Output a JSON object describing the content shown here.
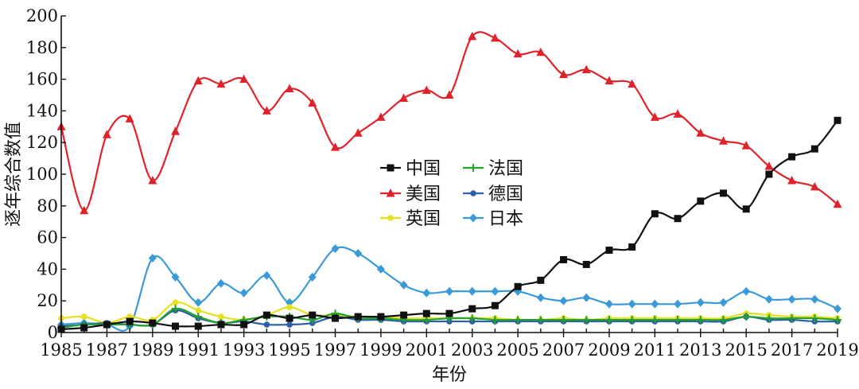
{
  "chart_data": {
    "type": "line",
    "title": "",
    "xlabel": "年份",
    "ylabel": "逐年综合数值",
    "ylim": [
      0,
      200
    ],
    "xlim": [
      1985,
      2019
    ],
    "x_ticks": [
      "1985",
      "1987",
      "1989",
      "1991",
      "1993",
      "1995",
      "1997",
      "1999",
      "2001",
      "2003",
      "2005",
      "2007",
      "2009",
      "2011",
      "2013",
      "2015",
      "2017",
      "2019"
    ],
    "y_ticks": [
      "0",
      "20",
      "40",
      "60",
      "80",
      "100",
      "120",
      "140",
      "160",
      "180",
      "200"
    ],
    "grid": false,
    "legend_placement": "center",
    "x": [
      1985,
      1986,
      1987,
      1988,
      1989,
      1990,
      1991,
      1992,
      1993,
      1994,
      1995,
      1996,
      1997,
      1998,
      1999,
      2000,
      2001,
      2002,
      2003,
      2004,
      2005,
      2006,
      2007,
      2008,
      2009,
      2010,
      2011,
      2012,
      2013,
      2014,
      2015,
      2016,
      2017,
      2018,
      2019
    ],
    "series": [
      {
        "name": "中国",
        "color": "#111111",
        "marker": "square",
        "values": [
          2,
          3,
          5,
          7,
          6,
          4,
          4,
          5,
          5,
          11,
          9,
          11,
          9,
          10,
          10,
          11,
          12,
          12,
          15,
          17,
          29,
          33,
          46,
          43,
          52,
          54,
          75,
          72,
          83,
          88,
          78,
          100,
          111,
          116,
          134
        ]
      },
      {
        "name": "法国",
        "color": "#22a32a",
        "marker": "plus",
        "values": [
          3,
          5,
          5,
          5,
          5,
          15,
          10,
          6,
          8,
          10,
          10,
          8,
          12,
          9,
          9,
          8,
          8,
          9,
          9,
          8,
          8,
          8,
          8,
          8,
          8,
          8,
          8,
          8,
          8,
          8,
          10,
          9,
          9,
          9,
          8
        ]
      },
      {
        "name": "美国",
        "color": "#e0222b",
        "marker": "triangle",
        "values": [
          130,
          77,
          125,
          135,
          96,
          127,
          159,
          157,
          160,
          140,
          154,
          145,
          117,
          126,
          136,
          148,
          153,
          150,
          187,
          186,
          176,
          177,
          163,
          166,
          159,
          157,
          136,
          138,
          126,
          121,
          118,
          105,
          96,
          92,
          81
        ]
      },
      {
        "name": "德国",
        "color": "#2d5fa8",
        "marker": "dot",
        "values": [
          4,
          5,
          6,
          5,
          5,
          14,
          9,
          6,
          7,
          5,
          5,
          6,
          10,
          8,
          8,
          7,
          7,
          7,
          7,
          7,
          7,
          7,
          7,
          7,
          7,
          7,
          7,
          7,
          7,
          7,
          10,
          8,
          8,
          7,
          7
        ]
      },
      {
        "name": "英国",
        "color": "#e6e01e",
        "marker": "dot",
        "values": [
          9,
          10,
          6,
          10,
          8,
          19,
          14,
          10,
          8,
          11,
          16,
          11,
          11,
          10,
          10,
          9,
          9,
          9,
          9,
          9,
          8,
          8,
          9,
          8,
          9,
          9,
          9,
          9,
          9,
          9,
          12,
          11,
          10,
          10,
          9
        ]
      },
      {
        "name": "日本",
        "color": "#3a9ad9",
        "marker": "diamond",
        "values": [
          5,
          6,
          5,
          4,
          47,
          35,
          19,
          31,
          25,
          36,
          19,
          35,
          53,
          50,
          40,
          30,
          25,
          26,
          26,
          26,
          26,
          22,
          20,
          22,
          18,
          18,
          18,
          18,
          19,
          19,
          26,
          21,
          21,
          21,
          15
        ]
      }
    ]
  }
}
